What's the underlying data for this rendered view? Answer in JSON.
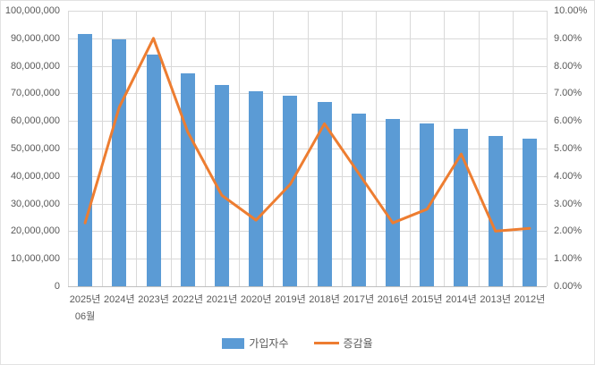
{
  "chart_data": {
    "type": "bar",
    "subtype": "bar-line-combo",
    "title": "",
    "categories": [
      "2025년 06월",
      "2024년",
      "2023년",
      "2022년",
      "2021년",
      "2020년",
      "2019년",
      "2018년",
      "2017년",
      "2016년",
      "2015년",
      "2014년",
      "2013년",
      "2012년"
    ],
    "series": [
      {
        "name": "가입자수",
        "type": "bar",
        "axis": "left",
        "color": "#5b9bd5",
        "values": [
          91700000,
          89500000,
          84100000,
          77300000,
          73000000,
          70900000,
          69100000,
          66800000,
          62800000,
          60700000,
          59200000,
          57300000,
          54600000,
          53600000
        ]
      },
      {
        "name": "증감율",
        "type": "line",
        "axis": "right",
        "color": "#ed7d31",
        "values": [
          2.3,
          6.5,
          9.0,
          5.6,
          3.3,
          2.4,
          3.7,
          5.9,
          4.1,
          2.3,
          2.8,
          4.8,
          2.0,
          2.1
        ]
      }
    ],
    "left_axis": {
      "min": 0,
      "max": 100000000,
      "tick_labels": [
        "100,000,000",
        "90,000,000",
        "80,000,000",
        "70,000,000",
        "60,000,000",
        "50,000,000",
        "40,000,000",
        "30,000,000",
        "20,000,000",
        "10,000,000",
        "0"
      ]
    },
    "right_axis": {
      "min": 0,
      "max": 10,
      "tick_labels": [
        "10.00%",
        "9.00%",
        "8.00%",
        "7.00%",
        "6.00%",
        "5.00%",
        "4.00%",
        "3.00%",
        "2.00%",
        "1.00%",
        "0.00%"
      ]
    },
    "legend": {
      "position": "bottom",
      "entries": [
        "가입자수",
        "증감율"
      ]
    },
    "grid": true
  },
  "colors": {
    "bar": "#5b9bd5",
    "line": "#ed7d31",
    "gridline": "#d9d9d9",
    "axis_line": "#bfbfbf",
    "text": "#595959"
  }
}
